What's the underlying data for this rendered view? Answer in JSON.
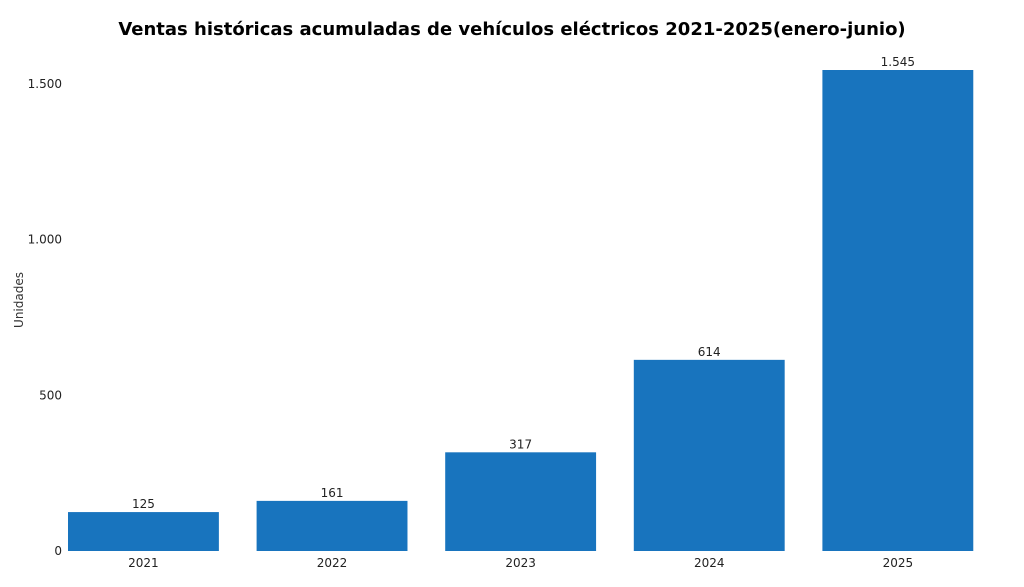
{
  "chart_data": {
    "type": "bar",
    "title": "Ventas históricas acumuladas de vehículos eléctricos 2021-2025(enero-junio)",
    "xlabel": "",
    "ylabel": "Unidades",
    "categories": [
      "2021",
      "2022",
      "2023",
      "2024",
      "2025"
    ],
    "values": [
      125,
      161,
      317,
      614,
      1545
    ],
    "value_labels": [
      "125",
      "161",
      "317",
      "614",
      "1.545"
    ],
    "ylim": [
      0,
      1545
    ],
    "yticks": [
      0,
      500,
      1000,
      1500
    ],
    "ytick_labels": [
      "0",
      "500",
      "1.000",
      "1.500"
    ],
    "bar_color": "#1874BE",
    "grid": false,
    "legend": "none"
  }
}
